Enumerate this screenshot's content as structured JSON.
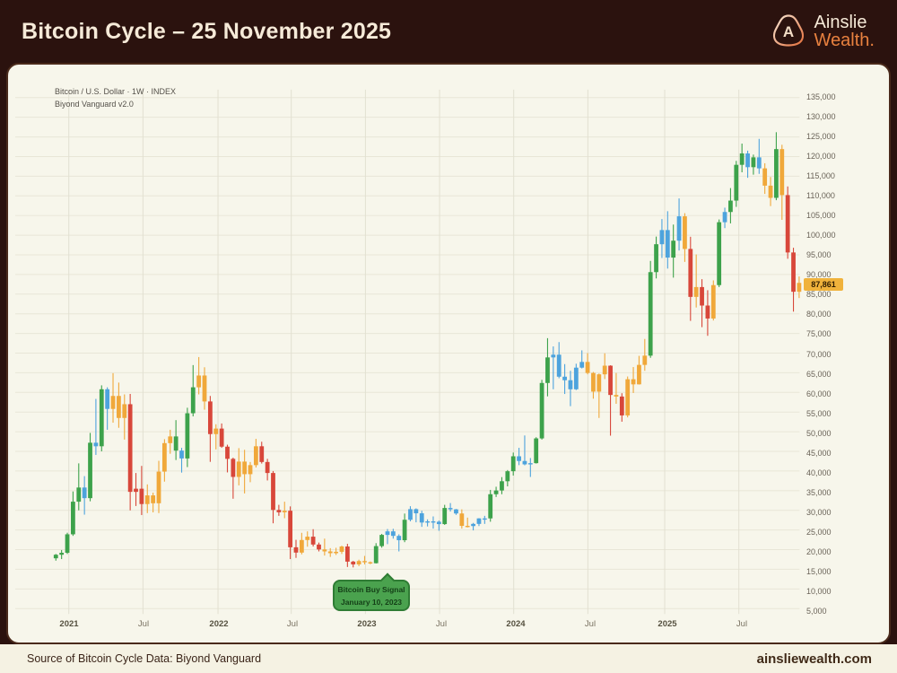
{
  "header": {
    "title": "Bitcoin Cycle – 25 November 2025",
    "brand": {
      "monogram": "A",
      "name_line1": "Ainslie",
      "name_line2": "Wealth."
    }
  },
  "chart": {
    "symbol_line1": "Bitcoin / U.S. Dollar · 1W · INDEX",
    "symbol_line2": "Biyond Vanguard v2.0",
    "price_label": "87,861",
    "buy_signal": {
      "line1": "Bitcoin Buy Signal",
      "line2": "January 10, 2023"
    }
  },
  "footer": {
    "source": "Source of Bitcoin Cycle Data: Biyond Vanguard",
    "website": "ainsliewealth.com"
  },
  "colors": {
    "green": "#3da24b",
    "blue": "#4da3dd",
    "yellow": "#f0a83a",
    "red": "#d8473a",
    "badge": "#f0b23b",
    "header_bg": "#2b120e",
    "panel_bg": "#f7f6eb",
    "accent_orange": "#e8813f",
    "callout_green": "#4aa24e"
  },
  "chart_data": {
    "type": "candlestick",
    "title": "Bitcoin / U.S. Dollar, 1W, INDEX — Biyond Vanguard v2.0 cycle coloring",
    "last_price": 87861,
    "ylim": [
      5000,
      135000
    ],
    "grid": true,
    "y_ticks": [
      "135,000",
      "130,000",
      "125,000",
      "120,000",
      "115,000",
      "110,000",
      "105,000",
      "100,000",
      "95,000",
      "90,000",
      "85,000",
      "80,000",
      "75,000",
      "70,000",
      "65,000",
      "60,000",
      "55,000",
      "50,000",
      "45,000",
      "40,000",
      "35,000",
      "30,000",
      "25,000",
      "20,000",
      "15,000",
      "10,000",
      "5,000"
    ],
    "x_ticks": [
      {
        "label": "2021",
        "x": 68,
        "major": true
      },
      {
        "label": "Jul",
        "x": 151,
        "major": false
      },
      {
        "label": "2022",
        "x": 235,
        "major": true
      },
      {
        "label": "Jul",
        "x": 317,
        "major": false
      },
      {
        "label": "2023",
        "x": 400,
        "major": true
      },
      {
        "label": "Jul",
        "x": 483,
        "major": false
      },
      {
        "label": "2024",
        "x": 566,
        "major": true
      },
      {
        "label": "Jul",
        "x": 649,
        "major": false
      },
      {
        "label": "2025",
        "x": 735,
        "major": true
      },
      {
        "label": "Jul",
        "x": 818,
        "major": false
      }
    ],
    "annotation": {
      "text1": "Bitcoin Buy Signal",
      "text2": "January 10, 2023",
      "points_to_value": 16480
    },
    "color_key": {
      "g": "green",
      "b": "blue",
      "y": "yellow",
      "r": "red"
    },
    "candles": [
      [
        17800,
        18900,
        17200,
        18700,
        "g"
      ],
      [
        18700,
        19900,
        17600,
        19200,
        "g"
      ],
      [
        19200,
        24300,
        18900,
        23900,
        "g"
      ],
      [
        23900,
        34800,
        23500,
        32200,
        "g"
      ],
      [
        32200,
        41950,
        30000,
        35800,
        "g"
      ],
      [
        35800,
        38700,
        28900,
        33100,
        "b"
      ],
      [
        33100,
        49700,
        32300,
        47200,
        "g"
      ],
      [
        47200,
        58350,
        44100,
        46300,
        "b"
      ],
      [
        46300,
        61800,
        45000,
        60800,
        "g"
      ],
      [
        60800,
        61300,
        50500,
        55800,
        "b"
      ],
      [
        55800,
        64895,
        52300,
        59100,
        "y"
      ],
      [
        59100,
        62500,
        51000,
        53500,
        "y"
      ],
      [
        53500,
        59500,
        48000,
        57000,
        "y"
      ],
      [
        57000,
        59600,
        30000,
        34700,
        "r"
      ],
      [
        34700,
        39500,
        31100,
        35500,
        "r"
      ],
      [
        35500,
        41300,
        28800,
        31600,
        "r"
      ],
      [
        31600,
        36600,
        29300,
        33800,
        "y"
      ],
      [
        33800,
        34500,
        29480,
        31800,
        "y"
      ],
      [
        31800,
        42600,
        29300,
        39850,
        "y"
      ],
      [
        39850,
        48100,
        37300,
        47100,
        "y"
      ],
      [
        47100,
        50500,
        44400,
        48800,
        "y"
      ],
      [
        48800,
        52950,
        42800,
        45200,
        "g"
      ],
      [
        45200,
        45900,
        39600,
        43200,
        "b"
      ],
      [
        43200,
        56100,
        41000,
        54700,
        "g"
      ],
      [
        54700,
        66950,
        53900,
        61300,
        "g"
      ],
      [
        61300,
        68990,
        59500,
        64300,
        "y"
      ],
      [
        64300,
        66400,
        55600,
        57700,
        "y"
      ],
      [
        57700,
        59100,
        42333,
        49400,
        "r"
      ],
      [
        49400,
        51900,
        45500,
        50800,
        "y"
      ],
      [
        50800,
        52100,
        45900,
        46200,
        "r"
      ],
      [
        46200,
        46700,
        39650,
        43100,
        "r"
      ],
      [
        43100,
        43400,
        32950,
        38500,
        "r"
      ],
      [
        38500,
        45820,
        36350,
        42400,
        "y"
      ],
      [
        42400,
        45400,
        34300,
        39200,
        "y"
      ],
      [
        39200,
        42300,
        37150,
        41500,
        "y"
      ],
      [
        41500,
        48190,
        40900,
        46300,
        "y"
      ],
      [
        46300,
        47450,
        41900,
        42300,
        "r"
      ],
      [
        42300,
        43100,
        37600,
        39500,
        "r"
      ],
      [
        39500,
        40000,
        26700,
        30100,
        "r"
      ],
      [
        30100,
        31400,
        28600,
        29500,
        "r"
      ],
      [
        29500,
        32200,
        28000,
        29900,
        "y"
      ],
      [
        29900,
        31000,
        17600,
        20600,
        "r"
      ],
      [
        20600,
        22500,
        17900,
        19250,
        "r"
      ],
      [
        19250,
        24280,
        18800,
        22450,
        "y"
      ],
      [
        22450,
        24650,
        20750,
        23300,
        "y"
      ],
      [
        23300,
        25200,
        20800,
        21300,
        "r"
      ],
      [
        21300,
        21800,
        19550,
        20050,
        "r"
      ],
      [
        20050,
        22800,
        18500,
        19550,
        "y"
      ],
      [
        19550,
        20380,
        18150,
        19100,
        "y"
      ],
      [
        19100,
        20475,
        18650,
        19450,
        "y"
      ],
      [
        19450,
        21000,
        18900,
        20800,
        "y"
      ],
      [
        20800,
        21480,
        15588,
        16950,
        "r"
      ],
      [
        16950,
        17150,
        15480,
        16250,
        "r"
      ],
      [
        16250,
        17450,
        15800,
        17100,
        "y"
      ],
      [
        17100,
        18400,
        16250,
        16800,
        "y"
      ],
      [
        16800,
        16990,
        16300,
        16550,
        "y"
      ],
      [
        16550,
        21650,
        16480,
        20900,
        "g"
      ],
      [
        20900,
        24000,
        20500,
        23750,
        "g"
      ],
      [
        23750,
        25250,
        21400,
        24650,
        "b"
      ],
      [
        24650,
        25300,
        22800,
        23500,
        "b"
      ],
      [
        23500,
        23900,
        19550,
        22400,
        "b"
      ],
      [
        22400,
        29180,
        21900,
        27600,
        "g"
      ],
      [
        27600,
        31050,
        27200,
        30300,
        "b"
      ],
      [
        30300,
        30500,
        26950,
        29250,
        "b"
      ],
      [
        29250,
        29900,
        25800,
        26900,
        "b"
      ],
      [
        26900,
        27700,
        25900,
        27200,
        "b"
      ],
      [
        27200,
        28450,
        25350,
        27100,
        "b"
      ],
      [
        27100,
        27400,
        24800,
        26500,
        "b"
      ],
      [
        26500,
        31400,
        26300,
        30600,
        "g"
      ],
      [
        30600,
        31850,
        29700,
        30250,
        "b"
      ],
      [
        30250,
        30350,
        28850,
        29200,
        "b"
      ],
      [
        29200,
        30250,
        25350,
        26050,
        "y"
      ],
      [
        26050,
        28150,
        25650,
        26000,
        "y"
      ],
      [
        26000,
        26800,
        24900,
        26550,
        "b"
      ],
      [
        26550,
        28000,
        26000,
        27950,
        "b"
      ],
      [
        27950,
        28600,
        26550,
        27950,
        "b"
      ],
      [
        27950,
        35200,
        27100,
        34100,
        "g"
      ],
      [
        34100,
        36000,
        33400,
        35050,
        "g"
      ],
      [
        35050,
        38450,
        34100,
        37400,
        "g"
      ],
      [
        37400,
        40250,
        36100,
        39950,
        "g"
      ],
      [
        39950,
        44700,
        38850,
        43750,
        "g"
      ],
      [
        43750,
        45900,
        41500,
        42550,
        "b"
      ],
      [
        42550,
        49050,
        41450,
        41700,
        "b"
      ],
      [
        41700,
        43300,
        38500,
        42000,
        "b"
      ],
      [
        42000,
        48600,
        41900,
        48300,
        "g"
      ],
      [
        48300,
        63200,
        48000,
        62400,
        "g"
      ],
      [
        62400,
        73800,
        59000,
        68900,
        "g"
      ],
      [
        68900,
        71700,
        60800,
        69600,
        "b"
      ],
      [
        69600,
        72800,
        63600,
        64000,
        "b"
      ],
      [
        64000,
        67200,
        59600,
        63100,
        "b"
      ],
      [
        63100,
        65500,
        56500,
        60800,
        "b"
      ],
      [
        60800,
        67300,
        60600,
        66300,
        "b"
      ],
      [
        66300,
        70700,
        66100,
        67750,
        "b"
      ],
      [
        67750,
        70000,
        64600,
        64950,
        "y"
      ],
      [
        64950,
        65200,
        58400,
        60200,
        "y"
      ],
      [
        60200,
        64800,
        53500,
        64600,
        "y"
      ],
      [
        64600,
        69950,
        63400,
        66800,
        "y"
      ],
      [
        66800,
        66900,
        49000,
        59350,
        "r"
      ],
      [
        59350,
        64950,
        57100,
        58950,
        "y"
      ],
      [
        58950,
        59800,
        52550,
        54150,
        "r"
      ],
      [
        54150,
        64050,
        53650,
        63350,
        "y"
      ],
      [
        63350,
        66450,
        59850,
        62050,
        "y"
      ],
      [
        62050,
        69300,
        62000,
        67000,
        "y"
      ],
      [
        67000,
        73600,
        65500,
        69350,
        "y"
      ],
      [
        69350,
        93450,
        68800,
        90600,
        "g"
      ],
      [
        90600,
        99650,
        89000,
        97700,
        "g"
      ],
      [
        97700,
        104100,
        94200,
        101300,
        "b"
      ],
      [
        101300,
        106100,
        91500,
        94300,
        "b"
      ],
      [
        94300,
        102700,
        89200,
        98600,
        "g"
      ],
      [
        98600,
        109350,
        96100,
        104800,
        "b"
      ],
      [
        104800,
        105600,
        93200,
        96500,
        "y"
      ],
      [
        96500,
        99600,
        78200,
        84300,
        "r"
      ],
      [
        84300,
        95100,
        81600,
        86800,
        "y"
      ],
      [
        86800,
        88800,
        76600,
        82100,
        "r"
      ],
      [
        82100,
        86000,
        74400,
        78800,
        "r"
      ],
      [
        78800,
        88500,
        78300,
        87300,
        "y"
      ],
      [
        87300,
        104000,
        86800,
        103300,
        "g"
      ],
      [
        103300,
        107000,
        101800,
        105900,
        "b"
      ],
      [
        105900,
        111980,
        103000,
        108800,
        "g"
      ],
      [
        108800,
        118900,
        107200,
        117900,
        "g"
      ],
      [
        117900,
        123300,
        116000,
        120800,
        "g"
      ],
      [
        120800,
        121500,
        114600,
        117300,
        "b"
      ],
      [
        117300,
        120500,
        115400,
        119800,
        "g"
      ],
      [
        119800,
        124500,
        115600,
        117000,
        "b"
      ],
      [
        117000,
        118300,
        110500,
        112600,
        "y"
      ],
      [
        112600,
        114800,
        107400,
        109500,
        "y"
      ],
      [
        109500,
        126200,
        108900,
        121900,
        "g"
      ],
      [
        121900,
        123000,
        103900,
        110200,
        "y"
      ],
      [
        110200,
        112400,
        94000,
        95600,
        "r"
      ],
      [
        95600,
        96800,
        80550,
        85600,
        "r"
      ],
      [
        85600,
        89500,
        84000,
        87861,
        "y"
      ]
    ]
  }
}
